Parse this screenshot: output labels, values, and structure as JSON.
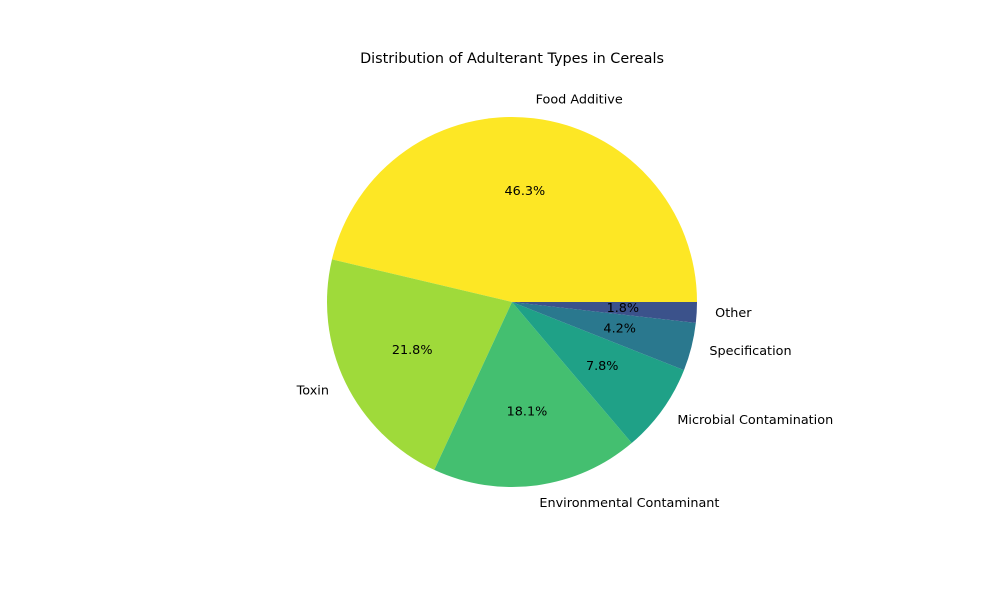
{
  "chart_data": {
    "type": "pie",
    "title": "Distribution of Adulterant Types in Cereals",
    "categories": [
      "Food Additive",
      "Toxin",
      "Environmental Contaminant",
      "Microbial Contamination",
      "Specification",
      "Other"
    ],
    "values": [
      46.3,
      21.8,
      18.1,
      7.8,
      4.2,
      1.8
    ],
    "percent_labels": [
      "46.3%",
      "21.8%",
      "18.1%",
      "7.8%",
      "4.2%",
      "1.8%"
    ],
    "colors": [
      "#fde725",
      "#9fda3a",
      "#44bf70",
      "#1fa187",
      "#2a788e",
      "#3b528b"
    ],
    "start_angle_deg": 0,
    "direction": "counterclockwise"
  }
}
